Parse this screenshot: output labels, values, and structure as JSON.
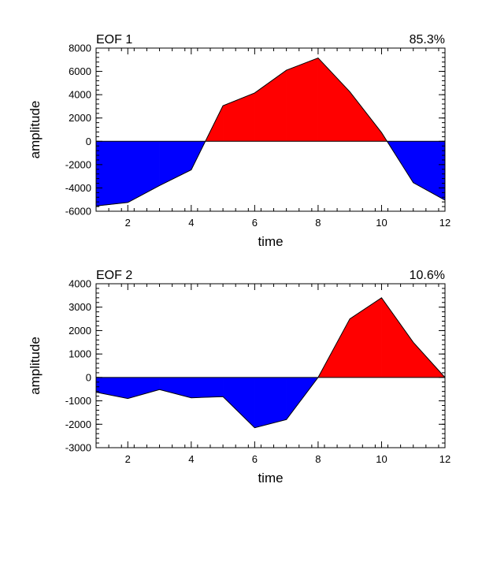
{
  "chart_data": [
    {
      "type": "area",
      "title": "EOF 1",
      "right_title": "85.3%",
      "xlabel": "time",
      "ylabel": "amplitude",
      "xlim": [
        1,
        12
      ],
      "ylim": [
        -6000,
        8000
      ],
      "x_ticks": [
        2,
        4,
        6,
        8,
        10,
        12
      ],
      "y_ticks": [
        -6000,
        -4000,
        -2000,
        0,
        2000,
        4000,
        6000,
        8000
      ],
      "y_minor_step": 400,
      "x_minor_step": 0.4,
      "x": [
        1,
        2,
        3,
        4,
        5,
        6,
        7,
        8,
        9,
        10,
        11,
        12
      ],
      "values": [
        -5550,
        -5250,
        -3800,
        -2450,
        3050,
        4150,
        6100,
        7150,
        4250,
        750,
        -3550,
        -5050
      ],
      "positive_color": "#ff0000",
      "negative_color": "#0000ff"
    },
    {
      "type": "area",
      "title": "EOF 2",
      "right_title": "10.6%",
      "xlabel": "time",
      "ylabel": "amplitude",
      "xlim": [
        1,
        12
      ],
      "ylim": [
        -3000,
        4000
      ],
      "x_ticks": [
        2,
        4,
        6,
        8,
        10,
        12
      ],
      "y_ticks": [
        -3000,
        -2000,
        -1000,
        0,
        1000,
        2000,
        3000,
        4000
      ],
      "y_minor_step": 200,
      "x_minor_step": 0.4,
      "x": [
        1,
        2,
        3,
        4,
        5,
        6,
        7,
        8,
        9,
        10,
        11,
        12
      ],
      "values": [
        -630,
        -900,
        -520,
        -870,
        -820,
        -2150,
        -1800,
        0,
        2500,
        3400,
        1500,
        0
      ],
      "positive_color": "#ff0000",
      "negative_color": "#0000ff"
    }
  ]
}
